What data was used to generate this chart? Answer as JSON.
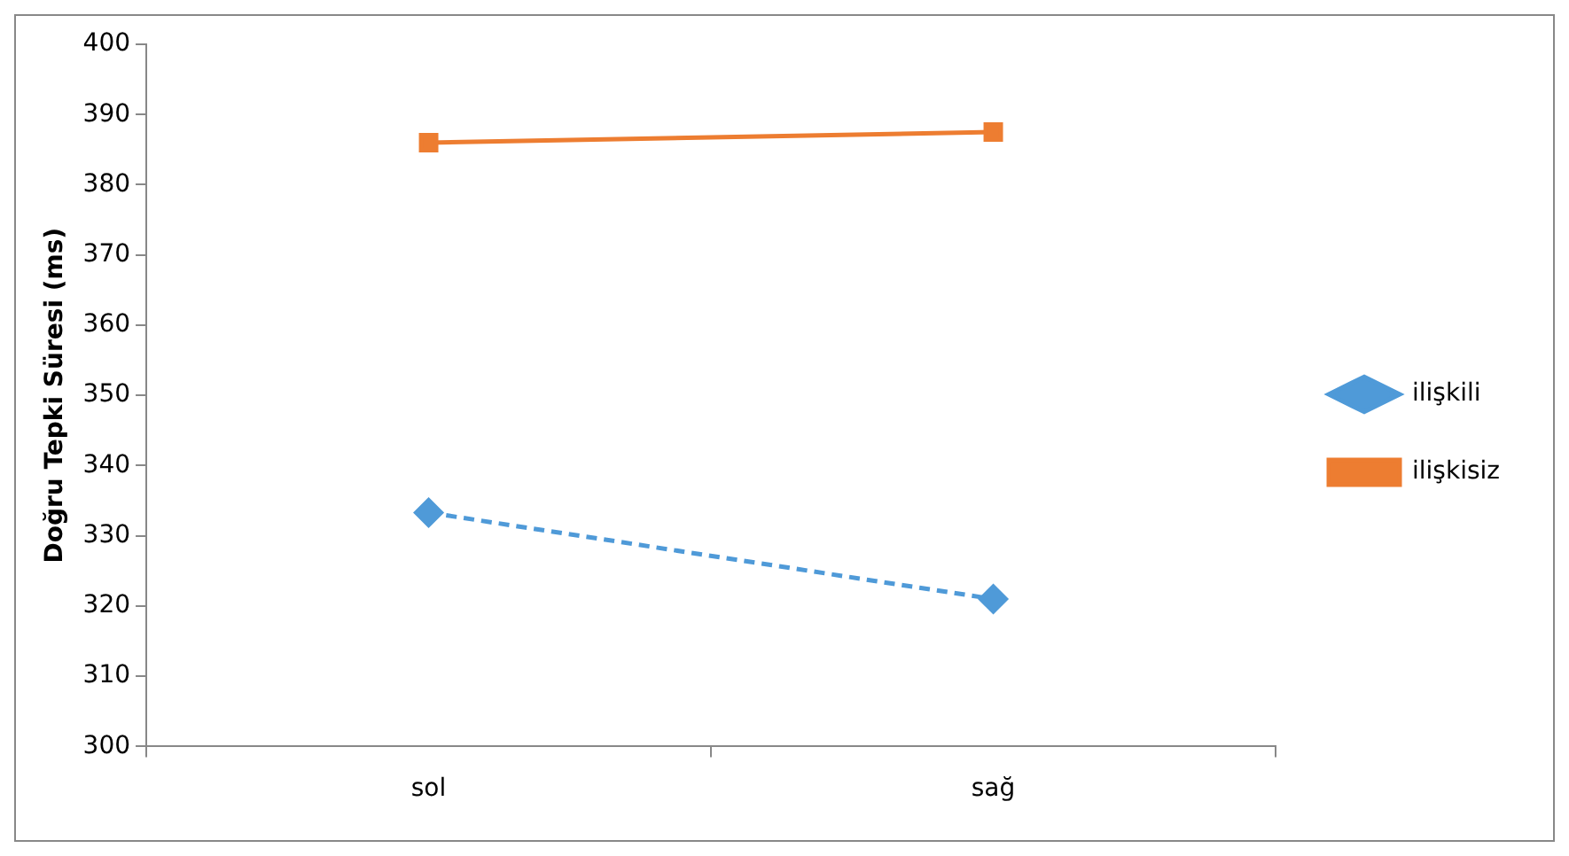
{
  "chart_data": {
    "type": "line",
    "ylabel": "Doğru Tepki Süresi (ms)",
    "categories": [
      "sol",
      "sağ"
    ],
    "series": [
      {
        "name": "ilişkili",
        "color": "#4f9ad8",
        "values": [
          333.3,
          321
        ],
        "marker": "diamond",
        "line_style": "dashed"
      },
      {
        "name": "ilişkisiz",
        "color": "#ed7d31",
        "values": [
          386,
          387.5
        ],
        "marker": "square",
        "line_style": "solid"
      }
    ],
    "ylim": [
      300,
      400
    ],
    "yticks": [
      300,
      310,
      320,
      330,
      340,
      350,
      360,
      370,
      380,
      390,
      400
    ],
    "grid": false,
    "legend": "right"
  }
}
